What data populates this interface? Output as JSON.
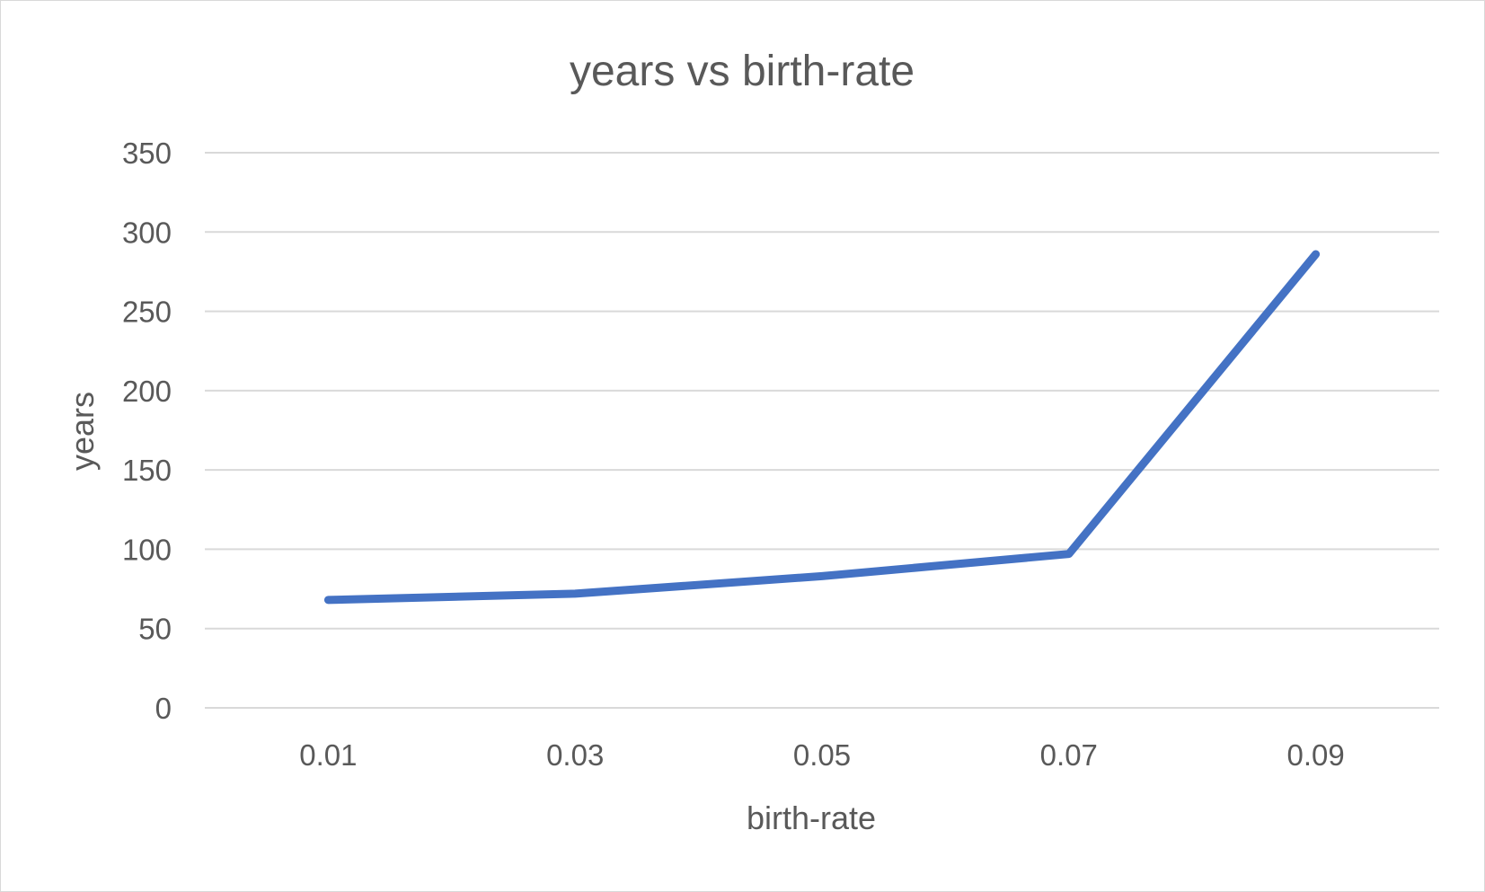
{
  "chart_data": {
    "type": "line",
    "title": "years vs birth-rate",
    "xlabel": "birth-rate",
    "ylabel": "years",
    "categories": [
      "0.01",
      "0.03",
      "0.05",
      "0.07",
      "0.09"
    ],
    "series": [
      {
        "values": [
          68,
          72,
          83,
          97,
          286
        ],
        "color": "#4472c4"
      }
    ],
    "ylim": [
      0,
      350
    ],
    "yticks": [
      "0",
      "50",
      "100",
      "150",
      "200",
      "250",
      "300",
      "350"
    ],
    "grid": true,
    "legend": "none"
  }
}
